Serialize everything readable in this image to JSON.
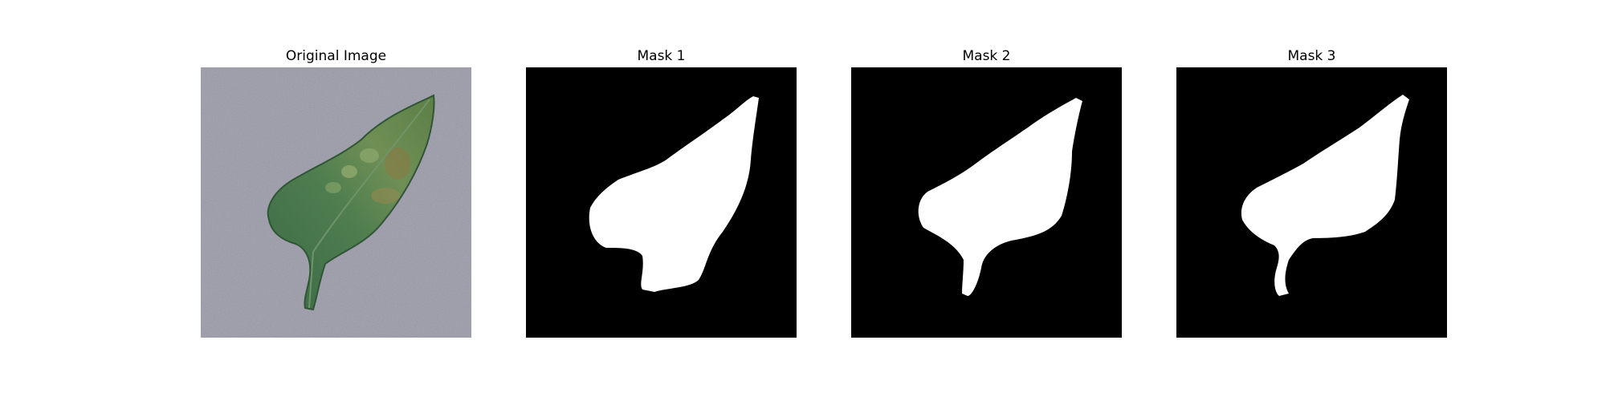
{
  "figure": {
    "panels": [
      {
        "title": "Original Image",
        "kind": "photo",
        "subject": "leaf on gray background"
      },
      {
        "title": "Mask 1",
        "kind": "mask"
      },
      {
        "title": "Mask 2",
        "kind": "mask"
      },
      {
        "title": "Mask 3",
        "kind": "mask"
      }
    ]
  },
  "colors": {
    "background": "#ffffff",
    "mask_background": "#000000",
    "mask_foreground": "#ffffff",
    "photo_background": "#9a9aa8",
    "leaf_dark": "#3f6b46",
    "leaf_light": "#7aa06a",
    "leaf_brown": "#8a7a45"
  }
}
